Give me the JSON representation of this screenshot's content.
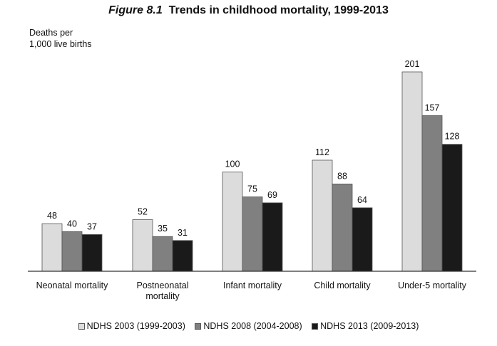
{
  "figure": {
    "number": "Figure 8.1",
    "title": "Trends in childhood mortality, 1999-2013"
  },
  "colors": {
    "series": [
      "#dcdcdc",
      "#808080",
      "#1a1a1a"
    ],
    "bar_stroke": "#555555",
    "axis": "#333333"
  },
  "chart_data": {
    "type": "bar",
    "title": "Trends in childhood mortality, 1999-2013",
    "ylabel_lines": [
      "Deaths per",
      "1,000 live births"
    ],
    "xlabel": "",
    "categories": [
      [
        "Neonatal mortality"
      ],
      [
        "Postneonatal",
        "mortality"
      ],
      [
        "Infant mortality"
      ],
      [
        "Child mortality"
      ],
      [
        "Under-5 mortality"
      ]
    ],
    "series": [
      {
        "name": "NDHS 2003 (1999-2003)",
        "values": [
          48,
          52,
          100,
          112,
          201
        ]
      },
      {
        "name": "NDHS 2008 (2004-2008)",
        "values": [
          40,
          35,
          75,
          88,
          157
        ]
      },
      {
        "name": "NDHS 2013 (2009-2013)",
        "values": [
          37,
          31,
          69,
          64,
          128
        ]
      }
    ],
    "ylim": [
      0,
      220
    ],
    "grid": false,
    "legend_position": "bottom",
    "data_labels": true
  }
}
